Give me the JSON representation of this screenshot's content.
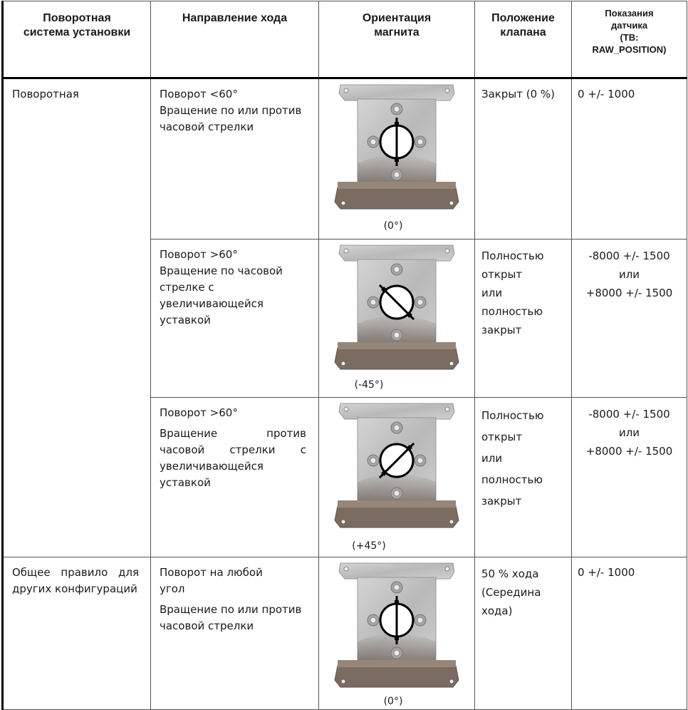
{
  "table": {
    "headers": [
      "Поворотная система установки",
      "Направление хода",
      "Ориентация магнита",
      "Положение клапана",
      "Показания датчика (TB: RAW_POSITION)"
    ],
    "header_lines": {
      "c1": [
        "Поворотная",
        "система установки"
      ],
      "c2": [
        "Направление хода"
      ],
      "c3": [
        "Ориентация",
        "магнита"
      ],
      "c4": [
        "Положение",
        "клапана"
      ],
      "c5": [
        "Показания",
        "датчика",
        "(TB:",
        "RAW_POSITION)"
      ]
    },
    "groups": [
      {
        "label": "Поворотная"
      },
      {
        "label": "Общее правило для других конфигураций"
      }
    ],
    "rows": [
      {
        "direction_1": "Поворот <60°",
        "direction_2": "Вращение по или против часовой стрелки",
        "angle": "(0°)",
        "valve": "Закрыт (0 %)",
        "sensor": [
          "0 +/- 1000"
        ]
      },
      {
        "direction_1": "Поворот >60°",
        "direction_2": "Вращение по часовой стрелке с увеличивающейся уставкой",
        "angle": "(-45°)",
        "valve": "Полностью открыт или полностью закрыт",
        "sensor": [
          "-8000 +/- 1500",
          "или",
          "+8000 +/- 1500"
        ]
      },
      {
        "direction_1": "Поворот >60°",
        "direction_2": "Вращение против часовой стрелки с увеличивающейся уставкой",
        "angle": "(+45°)",
        "valve": "Полностью открыт или полностью закрыт",
        "sensor": [
          "-8000 +/- 1500",
          "или",
          "+8000 +/- 1500"
        ]
      },
      {
        "direction_1": "Поворот на любой угол",
        "direction_2": "Вращение по или против часовой стрелки",
        "angle": "(0°)",
        "valve": "50 % хода (Середина хода)",
        "sensor": [
          "0 +/- 1000"
        ]
      }
    ],
    "magnet_rotation_deg": [
      0,
      -45,
      45,
      0
    ],
    "colors": {
      "border": "#555555",
      "header_rule": "#000000",
      "bracket": "#a8a8a8",
      "shadow": "#6b5f57"
    }
  }
}
